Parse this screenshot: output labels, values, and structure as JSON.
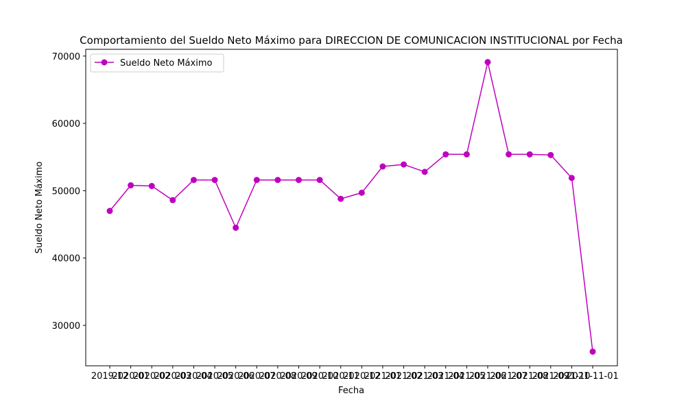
{
  "colors": {
    "series": "#bf00bf",
    "axis": "#000000",
    "background": "#ffffff",
    "legend_border": "#cccccc"
  },
  "chart_data": {
    "type": "line",
    "title": "Comportamiento del Sueldo Neto Máximo para DIRECCION DE COMUNICACION INSTITUCIONAL por Fecha",
    "xlabel": "Fecha",
    "ylabel": "Sueldo Neto Máximo",
    "x_tick_labels": [
      "2019-12",
      "2020-01",
      "2020-02",
      "2020-03",
      "2020-04",
      "2020-05",
      "2020-06",
      "2020-07",
      "2020-08",
      "2020-09",
      "2020-10",
      "2020-11",
      "2020-12",
      "2021-01",
      "2021-02",
      "2021-03",
      "2021-04",
      "2021-05",
      "2021-06",
      "2021-07",
      "2021-08",
      "2021-09",
      "2021-10",
      "2021-11-01"
    ],
    "yticks": [
      30000,
      40000,
      50000,
      60000,
      70000
    ],
    "ylim": [
      24000,
      71000
    ],
    "grid": false,
    "legend_position": "top-left",
    "series": [
      {
        "name": "Sueldo Neto Máximo",
        "marker": "circle",
        "values": [
          47000,
          50800,
          50700,
          48600,
          51600,
          51600,
          44500,
          51600,
          51600,
          51600,
          51600,
          48800,
          49700,
          53600,
          53900,
          52800,
          55400,
          55400,
          69100,
          55400,
          55400,
          55300,
          51900,
          26100
        ]
      }
    ]
  }
}
